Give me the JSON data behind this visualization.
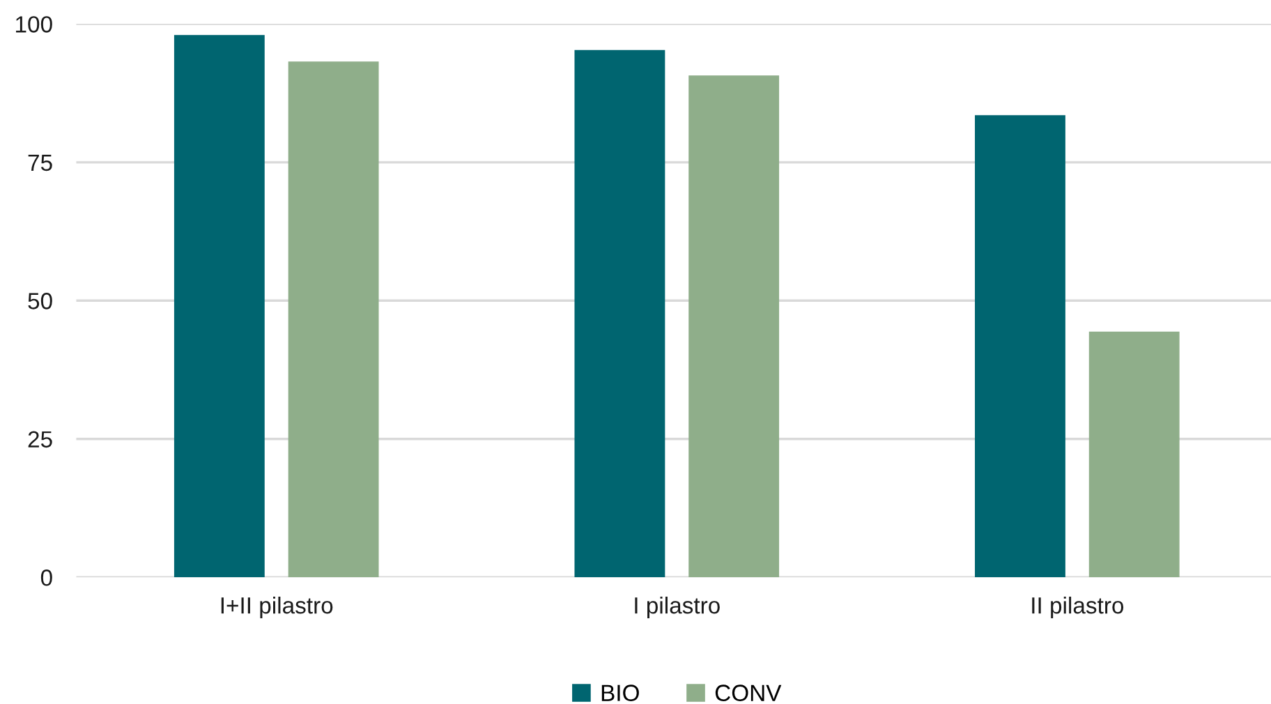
{
  "chart_data": {
    "type": "bar",
    "categories": [
      "I+II pilastro",
      "I pilastro",
      "II pilastro"
    ],
    "series": [
      {
        "name": "BIO",
        "color": "#006570",
        "values": [
          98.0,
          95.3,
          83.5
        ]
      },
      {
        "name": "CONV",
        "color": "#8fae8a",
        "values": [
          93.2,
          90.7,
          44.4
        ]
      }
    ],
    "ylim": [
      0,
      100
    ],
    "yticks": [
      0,
      25,
      50,
      75,
      100
    ],
    "grid": "y",
    "legend": "bottom"
  }
}
